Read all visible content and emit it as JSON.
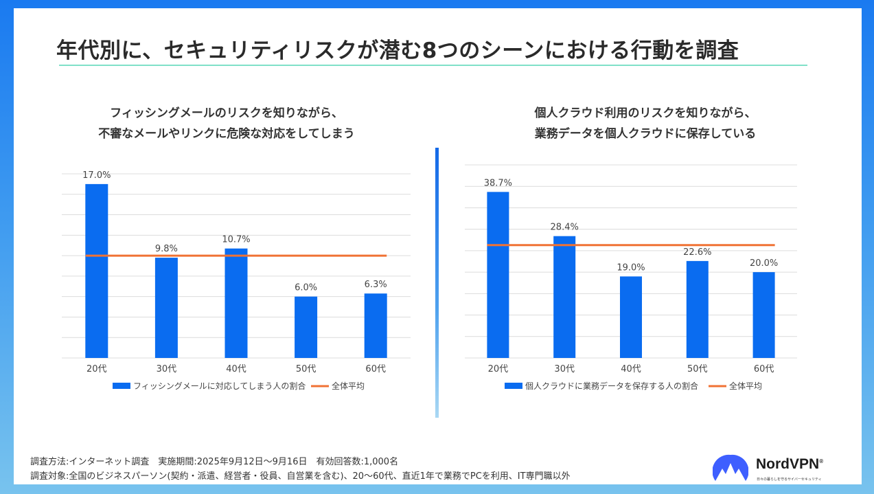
{
  "title": "年代別に、セキュリティリスクが潜む8つのシーンにおける行動を調査",
  "chart_data": [
    {
      "type": "bar",
      "title_line1": "フィッシングメールのリスクを知りながら、",
      "title_line2": "不審なメールやリンクに危険な対応をしてしまう",
      "categories": [
        "20代",
        "30代",
        "40代",
        "50代",
        "60代"
      ],
      "values": [
        17.0,
        9.8,
        10.7,
        6.0,
        6.3
      ],
      "value_labels": [
        "17.0%",
        "9.8%",
        "10.7%",
        "6.0%",
        "6.3%"
      ],
      "average": 10.0,
      "ylim": [
        0,
        18
      ],
      "gridlines": 9,
      "series_label": "フィッシングメールに対応してしまう人の割合",
      "average_label": "全体平均",
      "legend_position": "bottom"
    },
    {
      "type": "bar",
      "title_line1": "個人クラウド利用のリスクを知りながら、",
      "title_line2": "業務データを個人クラウドに保存している",
      "categories": [
        "20代",
        "30代",
        "40代",
        "50代",
        "60代"
      ],
      "values": [
        38.7,
        28.4,
        19.0,
        22.6,
        20.0
      ],
      "value_labels": [
        "38.7%",
        "28.4%",
        "19.0%",
        "22.6%",
        "20.0%"
      ],
      "average": 26.3,
      "ylim": [
        0,
        45
      ],
      "gridlines": 9,
      "series_label": "個人クラウドに業務データを保存する人の割合",
      "average_label": "全体平均",
      "legend_position": "bottom"
    }
  ],
  "footnote": {
    "line1": "調査方法:インターネット調査　実施期間:2025年9月12日～9月16日　有効回答数:1,000名",
    "line2": "調査対象:全国のビジネスパーソン(契約・派遣、経営者・役員、自営業を含む)、20～60代、直近1年で業務でPCを利用、IT専門職以外"
  },
  "logo": {
    "name": "NordVPN",
    "registered": "®",
    "tagline": "日々の暮らしを守るサイバーセキュリティ"
  },
  "colors": {
    "bar": "#0a6cf0",
    "average": "#f07234",
    "title_rule": "#7fe0c8"
  }
}
